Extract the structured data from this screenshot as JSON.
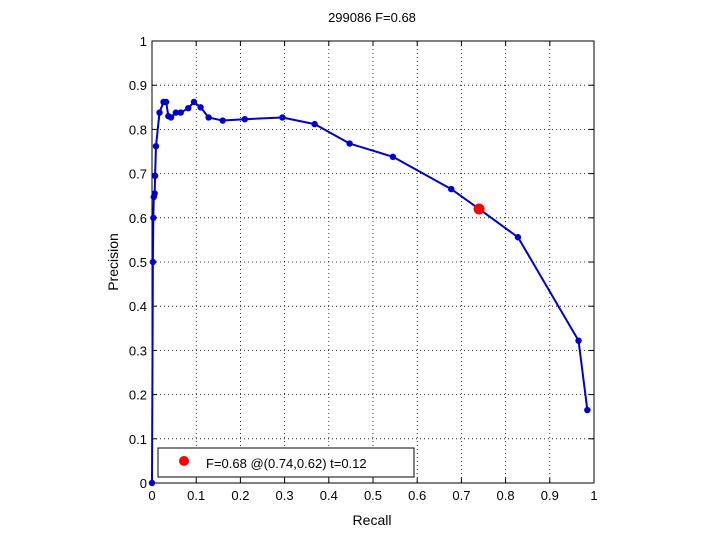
{
  "chart_data": {
    "type": "line",
    "title": "299086 F=0.68",
    "xlabel": "Recall",
    "ylabel": "Precision",
    "xlim": [
      0,
      1
    ],
    "ylim": [
      0,
      1
    ],
    "xticks": [
      "0",
      "0.1",
      "0.2",
      "0.3",
      "0.4",
      "0.5",
      "0.6",
      "0.7",
      "0.8",
      "0.9",
      "1"
    ],
    "yticks": [
      "0",
      "0.1",
      "0.2",
      "0.3",
      "0.4",
      "0.5",
      "0.6",
      "0.7",
      "0.8",
      "0.9",
      "1"
    ],
    "grid": true,
    "series": [
      {
        "color": "#0000cc",
        "marker": "dot",
        "points": [
          [
            0.0,
            0.0
          ],
          [
            0.002,
            0.5
          ],
          [
            0.003,
            0.6
          ],
          [
            0.004,
            0.647
          ],
          [
            0.006,
            0.655
          ],
          [
            0.007,
            0.695
          ],
          [
            0.009,
            0.762
          ],
          [
            0.017,
            0.838
          ],
          [
            0.026,
            0.862
          ],
          [
            0.032,
            0.862
          ],
          [
            0.037,
            0.83
          ],
          [
            0.043,
            0.827
          ],
          [
            0.054,
            0.838
          ],
          [
            0.065,
            0.838
          ],
          [
            0.082,
            0.848
          ],
          [
            0.095,
            0.862
          ],
          [
            0.11,
            0.85
          ],
          [
            0.128,
            0.827
          ],
          [
            0.16,
            0.82
          ],
          [
            0.21,
            0.823
          ],
          [
            0.295,
            0.827
          ],
          [
            0.368,
            0.812
          ],
          [
            0.447,
            0.768
          ],
          [
            0.545,
            0.738
          ],
          [
            0.677,
            0.665
          ],
          [
            0.74,
            0.62
          ],
          [
            0.828,
            0.556
          ],
          [
            0.965,
            0.322
          ],
          [
            0.985,
            0.165
          ]
        ]
      }
    ],
    "highlight": {
      "x": 0.74,
      "y": 0.62,
      "color": "#ff0000"
    },
    "legend": {
      "position": "bottom-left",
      "label": "F=0.68 @(0.74,0.62) t=0.12",
      "marker_color": "#ff0000"
    }
  }
}
